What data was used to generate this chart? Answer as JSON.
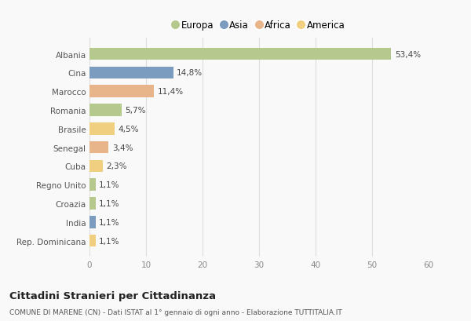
{
  "countries": [
    "Albania",
    "Cina",
    "Marocco",
    "Romania",
    "Brasile",
    "Senegal",
    "Cuba",
    "Regno Unito",
    "Croazia",
    "India",
    "Rep. Dominicana"
  ],
  "values": [
    53.4,
    14.8,
    11.4,
    5.7,
    4.5,
    3.4,
    2.3,
    1.1,
    1.1,
    1.1,
    1.1
  ],
  "labels": [
    "53,4%",
    "14,8%",
    "11,4%",
    "5,7%",
    "4,5%",
    "3,4%",
    "2,3%",
    "1,1%",
    "1,1%",
    "1,1%",
    "1,1%"
  ],
  "continents": [
    "Europa",
    "Asia",
    "Africa",
    "Europa",
    "America",
    "Africa",
    "America",
    "Europa",
    "Europa",
    "Asia",
    "America"
  ],
  "continent_colors": {
    "Europa": "#b5c98e",
    "Asia": "#7b9cbe",
    "Africa": "#e8b48a",
    "America": "#f0d080"
  },
  "legend_order": [
    "Europa",
    "Asia",
    "Africa",
    "America"
  ],
  "xlim": [
    0,
    60
  ],
  "xticks": [
    0,
    10,
    20,
    30,
    40,
    50,
    60
  ],
  "title": "Cittadini Stranieri per Cittadinanza",
  "subtitle": "COMUNE DI MARENE (CN) - Dati ISTAT al 1° gennaio di ogni anno - Elaborazione TUTTITALIA.IT",
  "background_color": "#f9f9f9",
  "grid_color": "#dddddd",
  "bar_height": 0.65
}
